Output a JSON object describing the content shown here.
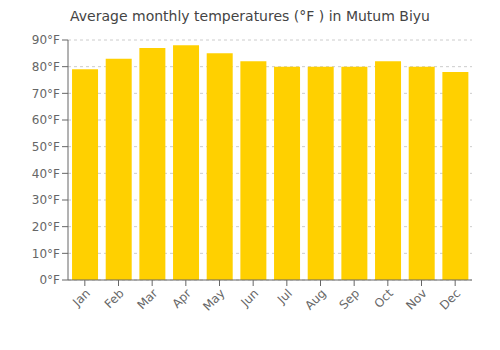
{
  "chart_data": {
    "type": "bar",
    "title": "Average monthly temperatures (°F ) in Mutum Biyu",
    "categories": [
      "Jan",
      "Feb",
      "Mar",
      "Apr",
      "May",
      "Jun",
      "Jul",
      "Aug",
      "Sep",
      "Oct",
      "Nov",
      "Dec"
    ],
    "values": [
      79,
      83,
      87,
      88,
      85,
      82,
      80,
      80,
      80,
      82,
      80,
      78
    ],
    "color": "#FFD000",
    "ylim": [
      0,
      90
    ],
    "yticks": [
      {
        "value": 0,
        "label": "0°F"
      },
      {
        "value": 10,
        "label": "10°F"
      },
      {
        "value": 20,
        "label": "20°F"
      },
      {
        "value": 30,
        "label": "30°F"
      },
      {
        "value": 40,
        "label": "40°F"
      },
      {
        "value": 50,
        "label": "50°F"
      },
      {
        "value": 60,
        "label": "60°F"
      },
      {
        "value": 70,
        "label": "70°F"
      },
      {
        "value": 80,
        "label": "80°F"
      },
      {
        "value": 90,
        "label": "90°F"
      }
    ],
    "grid": true
  }
}
